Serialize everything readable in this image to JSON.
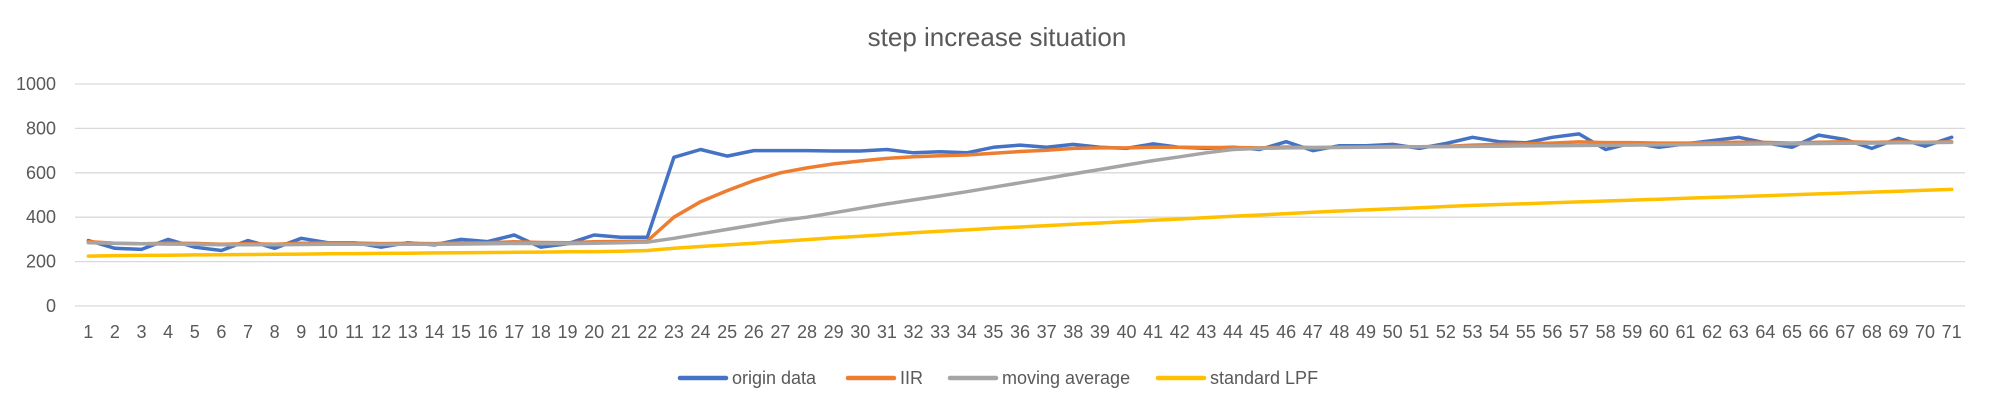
{
  "chart_data": {
    "type": "line",
    "title": "step increase situation",
    "xlabel": "",
    "ylabel": "",
    "ylim": [
      0,
      1000
    ],
    "yticks": [
      0,
      200,
      400,
      600,
      800,
      1000
    ],
    "grid": true,
    "legend_position": "bottom",
    "categories": [
      "1",
      "2",
      "3",
      "4",
      "5",
      "6",
      "7",
      "8",
      "9",
      "10",
      "11",
      "12",
      "13",
      "14",
      "15",
      "16",
      "17",
      "18",
      "19",
      "20",
      "21",
      "22",
      "23",
      "24",
      "25",
      "26",
      "27",
      "28",
      "29",
      "30",
      "31",
      "32",
      "33",
      "34",
      "35",
      "36",
      "37",
      "38",
      "39",
      "40",
      "41",
      "42",
      "43",
      "44",
      "45",
      "46",
      "47",
      "48",
      "49",
      "50",
      "51",
      "52",
      "53",
      "54",
      "55",
      "56",
      "57",
      "58",
      "59",
      "60",
      "61",
      "62",
      "63",
      "64",
      "65",
      "66",
      "67",
      "68",
      "69",
      "70",
      "71"
    ],
    "series": [
      {
        "name": "origin data",
        "color": "#4472C4",
        "values": [
          295,
          260,
          255,
          300,
          265,
          250,
          295,
          260,
          305,
          285,
          285,
          265,
          285,
          275,
          300,
          290,
          320,
          265,
          280,
          320,
          310,
          310,
          670,
          705,
          675,
          700,
          700,
          700,
          698,
          698,
          705,
          690,
          695,
          690,
          715,
          725,
          715,
          728,
          715,
          710,
          730,
          715,
          710,
          715,
          705,
          740,
          700,
          722,
          722,
          728,
          710,
          732,
          760,
          740,
          735,
          760,
          775,
          705,
          735,
          715,
          730,
          745,
          760,
          735,
          715,
          770,
          750,
          710,
          755,
          720,
          760
        ]
      },
      {
        "name": "IIR",
        "color": "#ED7D31",
        "values": [
          290,
          283,
          280,
          283,
          282,
          278,
          280,
          278,
          283,
          284,
          284,
          281,
          282,
          281,
          284,
          285,
          289,
          286,
          285,
          289,
          291,
          293,
          400,
          470,
          520,
          565,
          600,
          622,
          640,
          653,
          665,
          672,
          677,
          680,
          688,
          696,
          702,
          710,
          712,
          712,
          715,
          715,
          714,
          714,
          712,
          716,
          714,
          715,
          716,
          718,
          717,
          719,
          725,
          728,
          730,
          734,
          739,
          736,
          736,
          734,
          734,
          735,
          738,
          737,
          734,
          738,
          740,
          737,
          739,
          737,
          740
        ]
      },
      {
        "name": "moving average",
        "color": "#A5A5A5",
        "values": [
          285,
          283,
          280,
          279,
          278,
          276,
          276,
          276,
          277,
          278,
          278,
          277,
          278,
          278,
          279,
          280,
          282,
          281,
          281,
          283,
          285,
          288,
          305,
          325,
          345,
          365,
          385,
          400,
          420,
          440,
          460,
          478,
          496,
          515,
          535,
          555,
          575,
          595,
          615,
          635,
          655,
          672,
          690,
          705,
          710,
          712,
          713,
          714,
          715,
          716,
          717,
          718,
          719,
          720,
          721,
          722,
          723,
          724,
          725,
          726,
          727,
          728,
          729,
          730,
          731,
          732,
          733,
          734,
          735,
          736,
          737
        ]
      },
      {
        "name": "standard LPF",
        "color": "#FFC000",
        "values": [
          225,
          227,
          228,
          229,
          230,
          231,
          232,
          233,
          234,
          235,
          236,
          237,
          238,
          239,
          240,
          241,
          242,
          243,
          244,
          245,
          247,
          250,
          260,
          268,
          275,
          283,
          291,
          299,
          307,
          314,
          322,
          330,
          337,
          343,
          350,
          356,
          362,
          368,
          374,
          380,
          386,
          392,
          398,
          404,
          410,
          416,
          422,
          428,
          433,
          438,
          443,
          448,
          453,
          457,
          461,
          465,
          469,
          473,
          477,
          481,
          485,
          489,
          493,
          497,
          501,
          505,
          509,
          513,
          517,
          521,
          525
        ]
      }
    ]
  }
}
